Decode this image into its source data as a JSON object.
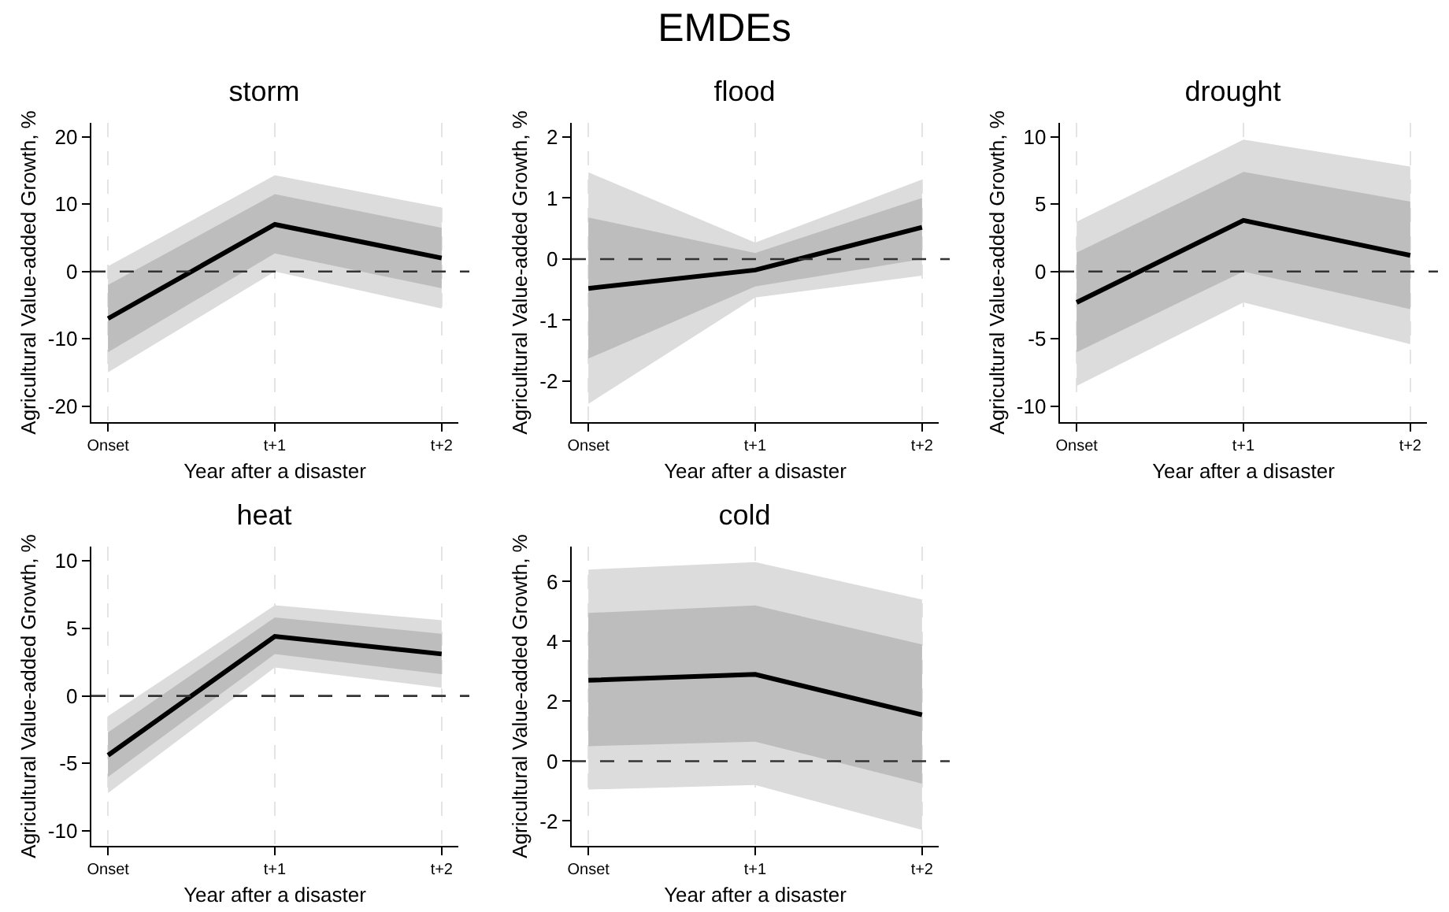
{
  "chart_data": [
    {
      "type": "line",
      "title": "storm",
      "xlabel": "Year after a disaster",
      "ylabel": "Agricultural Value-added Growth, %",
      "annotations": [
        "EMDEs"
      ],
      "categories": [
        "Onset",
        "t+1",
        "t+2"
      ],
      "ylim": [
        -22.4,
        22.1
      ],
      "yticks": [
        -20,
        -10,
        0,
        10,
        20
      ],
      "grid": "x",
      "line_style": "solid",
      "marker": "none",
      "ref_lines": [
        {
          "axis": "y",
          "value": 0,
          "color": "#333333",
          "line_style": "dashed"
        }
      ],
      "series": [
        {
          "color": "#dcdcdc",
          "values": [
            null,
            null,
            null
          ],
          "lower": [
            -15,
            0,
            -5.5
          ],
          "upper": [
            0.8,
            14.3,
            9.5
          ]
        },
        {
          "color": "#bdbdbd",
          "values": [
            null,
            null,
            null
          ],
          "lower": [
            -12,
            2.7,
            -2.5
          ],
          "upper": [
            -2,
            11.5,
            6.5
          ]
        },
        {
          "color": "#000000",
          "values": [
            -7,
            7,
            2
          ]
        }
      ]
    },
    {
      "type": "line",
      "title": "flood",
      "xlabel": "Year after a disaster",
      "ylabel": "Agricultural Value-added Growth, %",
      "categories": [
        "Onset",
        "t+1",
        "t+2"
      ],
      "ylim": [
        -2.67,
        2.23
      ],
      "yticks": [
        -2,
        -1,
        0,
        1,
        2
      ],
      "grid": "x",
      "line_style": "solid",
      "marker": "none",
      "ref_lines": [
        {
          "axis": "y",
          "value": 0,
          "color": "#333333",
          "line_style": "dashed"
        }
      ],
      "series": [
        {
          "color": "#dcdcdc",
          "values": [
            null,
            null,
            null
          ],
          "lower": [
            -2.37,
            -0.63,
            -0.27
          ],
          "upper": [
            1.42,
            0.27,
            1.3
          ]
        },
        {
          "color": "#bdbdbd",
          "values": [
            null,
            null,
            null
          ],
          "lower": [
            -1.63,
            -0.45,
            0
          ],
          "upper": [
            0.68,
            0.1,
            1.0
          ]
        },
        {
          "color": "#000000",
          "values": [
            -0.48,
            -0.18,
            0.52
          ]
        }
      ]
    },
    {
      "type": "line",
      "title": "drought",
      "xlabel": "Year after a disaster",
      "ylabel": "Agricultural Value-added Growth, %",
      "categories": [
        "Onset",
        "t+1",
        "t+2"
      ],
      "ylim": [
        -11.2,
        11.05
      ],
      "yticks": [
        -10,
        -5,
        0,
        5,
        10
      ],
      "grid": "x",
      "line_style": "solid",
      "marker": "none",
      "ref_lines": [
        {
          "axis": "y",
          "value": 0,
          "color": "#333333",
          "line_style": "dashed"
        }
      ],
      "series": [
        {
          "color": "#dcdcdc",
          "values": [
            null,
            null,
            null
          ],
          "lower": [
            -8.5,
            -2.3,
            -5.4
          ],
          "upper": [
            3.7,
            9.8,
            7.8
          ]
        },
        {
          "color": "#bdbdbd",
          "values": [
            null,
            null,
            null
          ],
          "lower": [
            -6,
            0,
            -2.8
          ],
          "upper": [
            1.4,
            7.4,
            5.2
          ]
        },
        {
          "color": "#000000",
          "values": [
            -2.3,
            3.8,
            1.2
          ]
        }
      ]
    },
    {
      "type": "line",
      "title": "heat",
      "xlabel": "Year after a disaster",
      "ylabel": "Agricultural Value-added Growth, %",
      "categories": [
        "Onset",
        "t+1",
        "t+2"
      ],
      "ylim": [
        -11.1,
        11.05
      ],
      "yticks": [
        -10,
        -5,
        0,
        5,
        10
      ],
      "grid": "x",
      "line_style": "solid",
      "marker": "none",
      "ref_lines": [
        {
          "axis": "y",
          "value": 0,
          "color": "#333333",
          "line_style": "dashed"
        }
      ],
      "series": [
        {
          "color": "#dcdcdc",
          "values": [
            null,
            null,
            null
          ],
          "lower": [
            -7.2,
            2.1,
            0.6
          ],
          "upper": [
            -1.5,
            6.7,
            5.6
          ]
        },
        {
          "color": "#bdbdbd",
          "values": [
            null,
            null,
            null
          ],
          "lower": [
            -6,
            3.1,
            1.6
          ],
          "upper": [
            -2.7,
            5.8,
            4.6
          ]
        },
        {
          "color": "#000000",
          "values": [
            -4.4,
            4.4,
            3.1
          ]
        }
      ]
    },
    {
      "type": "line",
      "title": "cold",
      "xlabel": "Year after a disaster",
      "ylabel": "Agricultural Value-added Growth, %",
      "categories": [
        "Onset",
        "t+1",
        "t+2"
      ],
      "ylim": [
        -2.83,
        7.17
      ],
      "yticks": [
        -2,
        0,
        2,
        4,
        6
      ],
      "grid": "x",
      "line_style": "solid",
      "marker": "none",
      "ref_lines": [
        {
          "axis": "y",
          "value": 0,
          "color": "#333333",
          "line_style": "dashed"
        }
      ],
      "series": [
        {
          "color": "#dcdcdc",
          "values": [
            null,
            null,
            null
          ],
          "lower": [
            -0.95,
            -0.8,
            -2.3
          ],
          "upper": [
            6.4,
            6.65,
            5.4
          ]
        },
        {
          "color": "#bdbdbd",
          "values": [
            null,
            null,
            null
          ],
          "lower": [
            0.5,
            0.65,
            -0.75
          ],
          "upper": [
            4.95,
            5.2,
            3.9
          ]
        },
        {
          "color": "#000000",
          "values": [
            2.7,
            2.9,
            1.55
          ]
        }
      ]
    }
  ]
}
